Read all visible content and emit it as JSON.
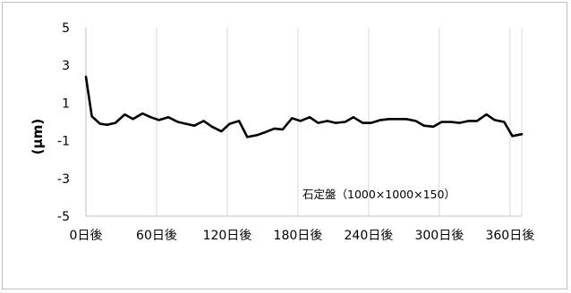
{
  "chart_data": {
    "type": "line",
    "title": "",
    "xlabel": "",
    "ylabel": "(μm)",
    "ylim": [
      -5,
      5
    ],
    "y_ticks": [
      5,
      3,
      1,
      -1,
      -3,
      -5
    ],
    "xlim": [
      0,
      370
    ],
    "x_ticks": [
      0,
      60,
      120,
      180,
      240,
      300,
      360
    ],
    "x_tick_labels": [
      "0日後",
      "60日後",
      "120日後",
      "180日後",
      "240日後",
      "300日後",
      "360日後"
    ],
    "grid": "vertical",
    "annotation": "石定盤（1000×1000×150）",
    "series": [
      {
        "name": "",
        "color": "#000000",
        "x": [
          0,
          5,
          12,
          18,
          25,
          33,
          40,
          48,
          55,
          62,
          70,
          78,
          85,
          92,
          100,
          107,
          115,
          122,
          130,
          137,
          145,
          152,
          160,
          167,
          175,
          182,
          190,
          197,
          205,
          212,
          220,
          227,
          235,
          242,
          250,
          257,
          265,
          272,
          280,
          287,
          295,
          302,
          310,
          317,
          325,
          332,
          340,
          347,
          355,
          362,
          370
        ],
        "y": [
          2.4,
          0.3,
          -0.1,
          -0.15,
          -0.05,
          0.4,
          0.15,
          0.45,
          0.25,
          0.1,
          0.25,
          0.0,
          -0.1,
          -0.2,
          0.05,
          -0.25,
          -0.5,
          -0.1,
          0.05,
          -0.8,
          -0.7,
          -0.55,
          -0.35,
          -0.4,
          0.2,
          0.05,
          0.25,
          -0.05,
          0.05,
          -0.05,
          0.0,
          0.25,
          -0.05,
          -0.05,
          0.1,
          0.15,
          0.15,
          0.15,
          0.05,
          -0.2,
          -0.25,
          0.0,
          0.0,
          -0.05,
          0.05,
          0.05,
          0.4,
          0.1,
          0.0,
          -0.75,
          -0.65
        ]
      }
    ]
  }
}
